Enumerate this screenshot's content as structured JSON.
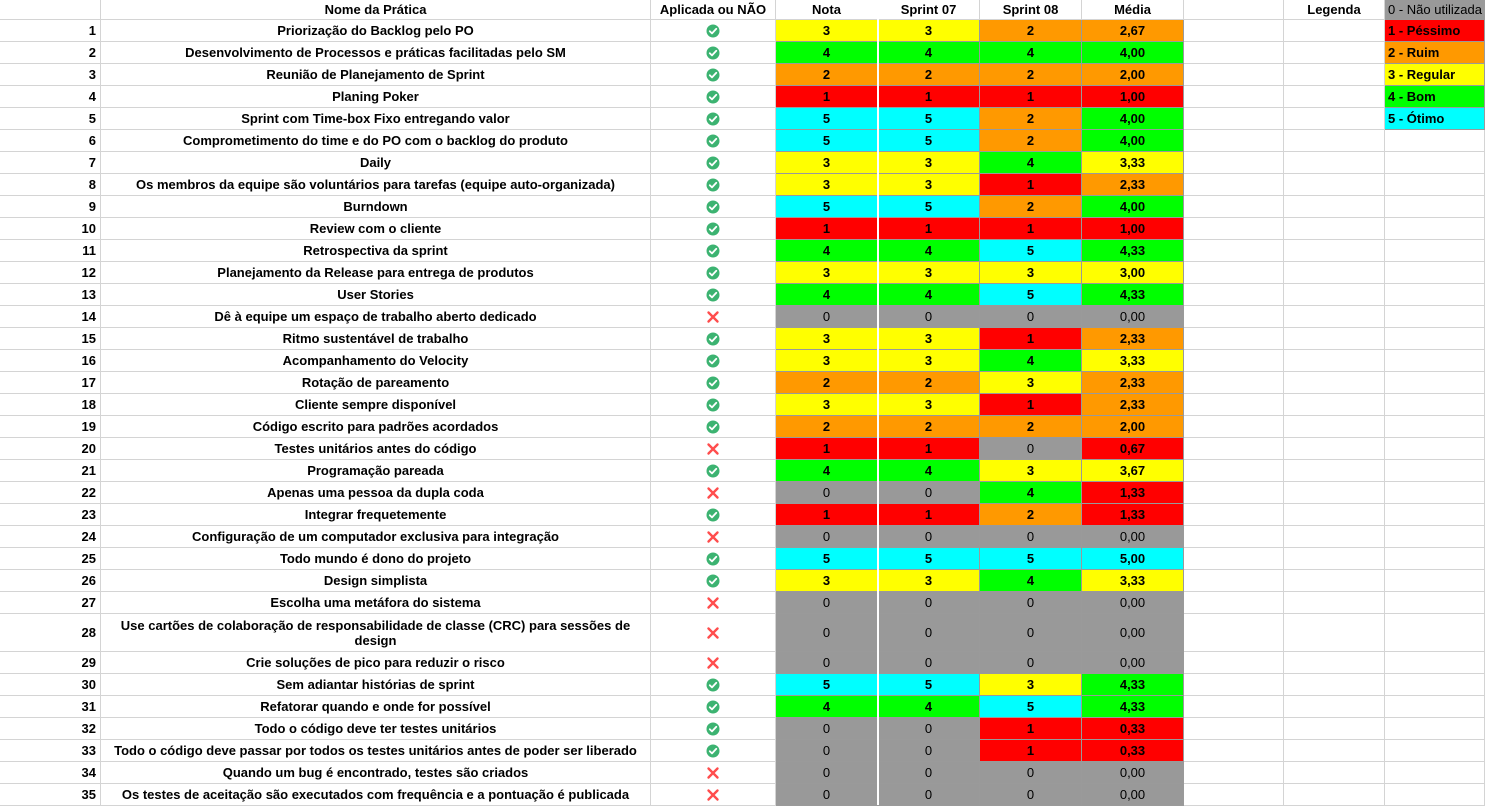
{
  "headers": {
    "name": "Nome da Prática",
    "applied": "Aplicada ou NÃO",
    "nota": "Nota",
    "s07": "Sprint 07",
    "s08": "Sprint 08",
    "media": "Média",
    "legenda": "Legenda"
  },
  "colors": {
    "0": "#999999",
    "1": "#ff0000",
    "2": "#ff9900",
    "3": "#ffff00",
    "4": "#00ff00",
    "5": "#00ffff",
    "check": "#3cb371",
    "cross": "#ff4d4d"
  },
  "legend": [
    {
      "label": "0 - Não utilizada",
      "level": 0
    },
    {
      "label": "1 - Péssimo",
      "level": 1
    },
    {
      "label": "2 - Ruim",
      "level": 2
    },
    {
      "label": "3 - Regular",
      "level": 3
    },
    {
      "label": "4 - Bom",
      "level": 4
    },
    {
      "label": "5 - Ótimo",
      "level": 5
    }
  ],
  "rows": [
    {
      "n": "1",
      "name": "Priorização do Backlog pelo PO",
      "ok": true,
      "nota": "3",
      "s07": "3",
      "s08": "2",
      "media": "2,67",
      "mlevel": 2
    },
    {
      "n": "2",
      "name": "Desenvolvimento de Processos e práticas facilitadas pelo SM",
      "ok": true,
      "nota": "4",
      "s07": "4",
      "s08": "4",
      "media": "4,00",
      "mlevel": 4
    },
    {
      "n": "3",
      "name": "Reunião de Planejamento de Sprint",
      "ok": true,
      "nota": "2",
      "s07": "2",
      "s08": "2",
      "media": "2,00",
      "mlevel": 2
    },
    {
      "n": "4",
      "name": "Planing Poker",
      "ok": true,
      "nota": "1",
      "s07": "1",
      "s08": "1",
      "media": "1,00",
      "mlevel": 1
    },
    {
      "n": "5",
      "name": "Sprint com Time-box Fixo entregando valor",
      "ok": true,
      "nota": "5",
      "s07": "5",
      "s08": "2",
      "media": "4,00",
      "mlevel": 4
    },
    {
      "n": "6",
      "name": "Comprometimento do time e do PO com o backlog do produto",
      "ok": true,
      "nota": "5",
      "s07": "5",
      "s08": "2",
      "media": "4,00",
      "mlevel": 4
    },
    {
      "n": "7",
      "name": "Daily",
      "ok": true,
      "nota": "3",
      "s07": "3",
      "s08": "4",
      "media": "3,33",
      "mlevel": 3
    },
    {
      "n": "8",
      "name": "Os membros da equipe são voluntários para tarefas (equipe auto-organizada)",
      "ok": true,
      "nota": "3",
      "s07": "3",
      "s08": "1",
      "media": "2,33",
      "mlevel": 2
    },
    {
      "n": "9",
      "name": "Burndown",
      "ok": true,
      "nota": "5",
      "s07": "5",
      "s08": "2",
      "media": "4,00",
      "mlevel": 4
    },
    {
      "n": "10",
      "name": "Review com o cliente",
      "ok": true,
      "nota": "1",
      "s07": "1",
      "s08": "1",
      "media": "1,00",
      "mlevel": 1
    },
    {
      "n": "11",
      "name": "Retrospectiva da sprint",
      "ok": true,
      "nota": "4",
      "s07": "4",
      "s08": "5",
      "media": "4,33",
      "mlevel": 4
    },
    {
      "n": "12",
      "name": "Planejamento da Release para entrega de produtos",
      "ok": true,
      "nota": "3",
      "s07": "3",
      "s08": "3",
      "media": "3,00",
      "mlevel": 3
    },
    {
      "n": "13",
      "name": "User Stories",
      "ok": true,
      "nota": "4",
      "s07": "4",
      "s08": "5",
      "media": "4,33",
      "mlevel": 4
    },
    {
      "n": "14",
      "name": "Dê à equipe um espaço de trabalho aberto dedicado",
      "ok": false,
      "nota": "0",
      "s07": "0",
      "s08": "0",
      "media": "0,00",
      "mlevel": 0
    },
    {
      "n": "15",
      "name": "Ritmo sustentável de trabalho",
      "ok": true,
      "nota": "3",
      "s07": "3",
      "s08": "1",
      "media": "2,33",
      "mlevel": 2
    },
    {
      "n": "16",
      "name": "Acompanhamento do Velocity",
      "ok": true,
      "nota": "3",
      "s07": "3",
      "s08": "4",
      "media": "3,33",
      "mlevel": 3
    },
    {
      "n": "17",
      "name": "Rotação de pareamento",
      "ok": true,
      "nota": "2",
      "s07": "2",
      "s08": "3",
      "media": "2,33",
      "mlevel": 2
    },
    {
      "n": "18",
      "name": "Cliente sempre disponível",
      "ok": true,
      "nota": "3",
      "s07": "3",
      "s08": "1",
      "media": "2,33",
      "mlevel": 2
    },
    {
      "n": "19",
      "name": "Código escrito para padrões acordados",
      "ok": true,
      "nota": "2",
      "s07": "2",
      "s08": "2",
      "media": "2,00",
      "mlevel": 2
    },
    {
      "n": "20",
      "name": "Testes unitários antes do código",
      "ok": false,
      "nota": "1",
      "s07": "1",
      "s08": "0",
      "media": "0,67",
      "mlevel": 1
    },
    {
      "n": "21",
      "name": "Programação pareada",
      "ok": true,
      "nota": "4",
      "s07": "4",
      "s08": "3",
      "media": "3,67",
      "mlevel": 3
    },
    {
      "n": "22",
      "name": "Apenas uma pessoa da dupla coda",
      "ok": false,
      "nota": "0",
      "s07": "0",
      "s08": "4",
      "media": "1,33",
      "mlevel": 1
    },
    {
      "n": "23",
      "name": "Integrar frequetemente",
      "ok": true,
      "nota": "1",
      "s07": "1",
      "s08": "2",
      "media": "1,33",
      "mlevel": 1
    },
    {
      "n": "24",
      "name": "Configuração de um computador exclusiva para integração",
      "ok": false,
      "nota": "0",
      "s07": "0",
      "s08": "0",
      "media": "0,00",
      "mlevel": 0
    },
    {
      "n": "25",
      "name": "Todo mundo é dono do projeto",
      "ok": true,
      "nota": "5",
      "s07": "5",
      "s08": "5",
      "media": "5,00",
      "mlevel": 5
    },
    {
      "n": "26",
      "name": "Design simplista",
      "ok": true,
      "nota": "3",
      "s07": "3",
      "s08": "4",
      "media": "3,33",
      "mlevel": 3
    },
    {
      "n": "27",
      "name": "Escolha uma metáfora do sistema",
      "ok": false,
      "nota": "0",
      "s07": "0",
      "s08": "0",
      "media": "0,00",
      "mlevel": 0
    },
    {
      "n": "28",
      "name": "Use cartões de colaboração de responsabilidade de classe (CRC) para sessões de design",
      "ok": false,
      "nota": "0",
      "s07": "0",
      "s08": "0",
      "media": "0,00",
      "mlevel": 0
    },
    {
      "n": "29",
      "name": "Crie soluções de pico para reduzir o risco",
      "ok": false,
      "nota": "0",
      "s07": "0",
      "s08": "0",
      "media": "0,00",
      "mlevel": 0
    },
    {
      "n": "30",
      "name": "Sem adiantar histórias de sprint",
      "ok": true,
      "nota": "5",
      "s07": "5",
      "s08": "3",
      "media": "4,33",
      "mlevel": 4
    },
    {
      "n": "31",
      "name": "Refatorar quando e onde for possível",
      "ok": true,
      "nota": "4",
      "s07": "4",
      "s08": "5",
      "media": "4,33",
      "mlevel": 4
    },
    {
      "n": "32",
      "name": "Todo o código deve ter testes unitários",
      "ok": true,
      "nota": "0",
      "s07": "0",
      "s08": "1",
      "media": "0,33",
      "mlevel": 1
    },
    {
      "n": "33",
      "name": "Todo o código deve passar por todos os testes unitários antes de poder ser liberado",
      "ok": true,
      "nota": "0",
      "s07": "0",
      "s08": "1",
      "media": "0,33",
      "mlevel": 1
    },
    {
      "n": "34",
      "name": "Quando um bug é encontrado, testes são criados",
      "ok": false,
      "nota": "0",
      "s07": "0",
      "s08": "0",
      "media": "0,00",
      "mlevel": 0
    },
    {
      "n": "35",
      "name": "Os testes de aceitação são executados com frequência e a pontuação é publicada",
      "ok": false,
      "nota": "0",
      "s07": "0",
      "s08": "0",
      "media": "0,00",
      "mlevel": 0
    }
  ]
}
